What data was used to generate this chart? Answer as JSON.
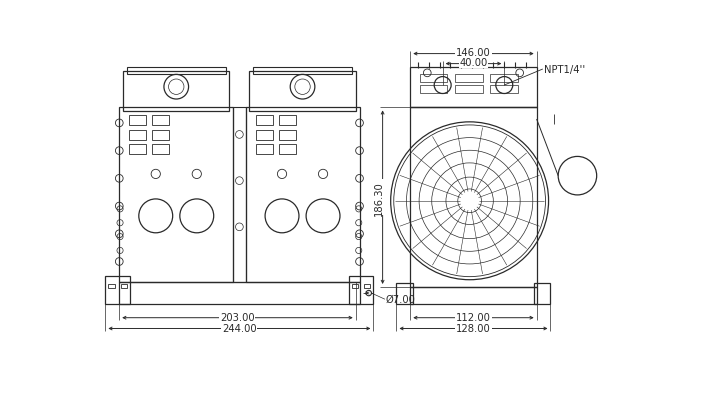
{
  "bg_color": "#ffffff",
  "line_color": "#2a2a2a",
  "fig_width": 7.06,
  "fig_height": 4.1,
  "dpi": 100,
  "dims": {
    "d203": "203.00",
    "d244": "244.00",
    "d7": "Ø7.00",
    "d146": "146.00",
    "d40": "40.00",
    "d186": "186.30",
    "d112": "112.00",
    "d128": "128.00",
    "npt": "NPT1/4''"
  }
}
